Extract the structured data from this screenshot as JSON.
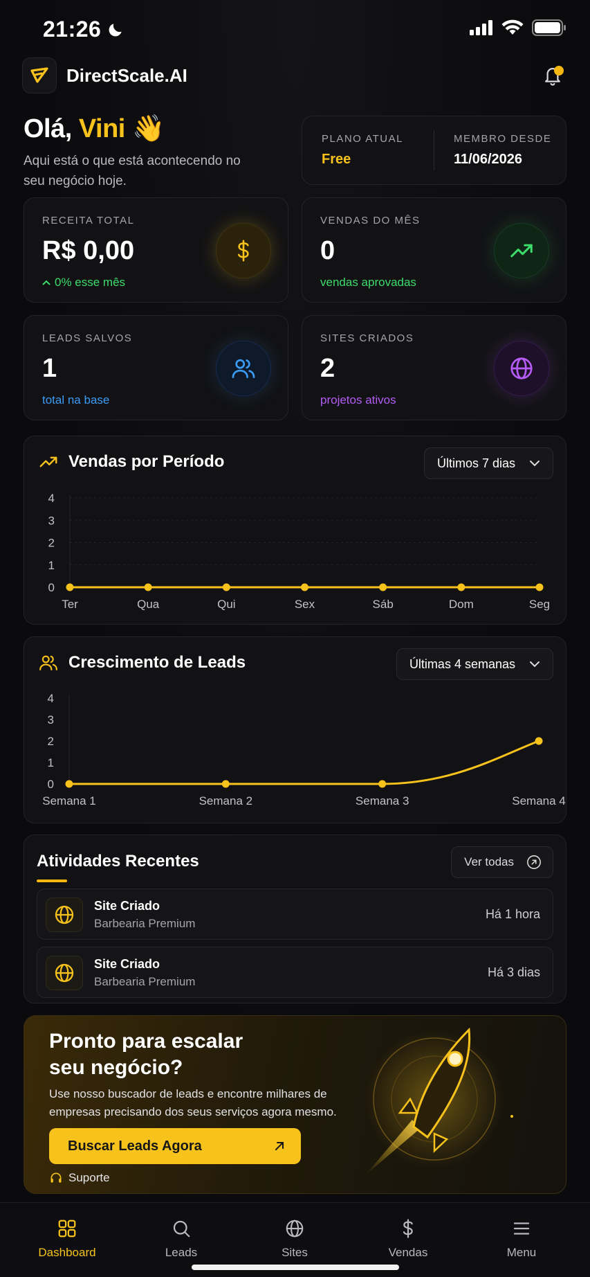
{
  "status_bar": {
    "time": "21:26"
  },
  "header": {
    "brand": "DirectScale.AI"
  },
  "greeting": {
    "hello": "Olá,",
    "name": "Vini",
    "emoji": "👋",
    "subtitle": "Aqui está o que está acontecendo no seu negócio hoje."
  },
  "plan": {
    "current_label": "PLANO ATUAL",
    "current_value": "Free",
    "member_label": "MEMBRO DESDE",
    "member_value": "11/06/2026"
  },
  "stats": [
    {
      "label": "RECEITA TOTAL",
      "value": "R$ 0,00",
      "sub": "0% esse mês",
      "icon": "dollar-icon",
      "accent": "#f7c21b"
    },
    {
      "label": "VENDAS DO MÊS",
      "value": "0",
      "sub": "vendas aprovadas",
      "icon": "trending-up-icon",
      "accent": "#3ddc6b"
    },
    {
      "label": "LEADS SALVOS",
      "value": "1",
      "sub": "total na base",
      "icon": "users-icon",
      "accent": "#3b9cf5"
    },
    {
      "label": "SITES CRIADOS",
      "value": "2",
      "sub": "projetos ativos",
      "icon": "globe-icon",
      "accent": "#b45cf5"
    }
  ],
  "sales_chart": {
    "title": "Vendas por Período",
    "filter": "Últimos 7 dias"
  },
  "leads_chart": {
    "title": "Crescimento de Leads",
    "filter": "Últimas 4 semanas"
  },
  "chart_data": [
    {
      "type": "line",
      "title": "Vendas por Período",
      "categories": [
        "Ter",
        "Qua",
        "Qui",
        "Sex",
        "Sáb",
        "Dom",
        "Seg"
      ],
      "values": [
        0,
        0,
        0,
        0,
        0,
        0,
        0
      ],
      "yticks": [
        0,
        1,
        2,
        3,
        4
      ],
      "ylim": [
        0,
        4
      ],
      "grid": true,
      "color": "#f7c21b"
    },
    {
      "type": "line",
      "title": "Crescimento de Leads",
      "categories": [
        "Semana 1",
        "Semana 2",
        "Semana 3",
        "Semana 4"
      ],
      "values": [
        0,
        0,
        0,
        2
      ],
      "yticks": [
        0,
        1,
        2,
        3,
        4
      ],
      "ylim": [
        0,
        4
      ],
      "grid": false,
      "color": "#f7c21b"
    }
  ],
  "activities": {
    "title": "Atividades Recentes",
    "view_all": "Ver todas",
    "items": [
      {
        "title": "Site Criado",
        "subtitle": "Barbearia Premium",
        "time": "Há 1 hora"
      },
      {
        "title": "Site Criado",
        "subtitle": "Barbearia Premium",
        "time": "Há 3 dias"
      }
    ]
  },
  "promo": {
    "title": "Pronto para escalar seu negócio?",
    "text": "Use nosso buscador de leads e encontre milhares de empresas precisando dos seus serviços agora mesmo.",
    "cta": "Buscar Leads Agora",
    "support": "Suporte"
  },
  "nav": [
    {
      "label": "Dashboard",
      "icon": "grid-icon",
      "active": true
    },
    {
      "label": "Leads",
      "icon": "search-icon",
      "active": false
    },
    {
      "label": "Sites",
      "icon": "globe-icon",
      "active": false
    },
    {
      "label": "Vendas",
      "icon": "dollar-icon",
      "active": false
    },
    {
      "label": "Menu",
      "icon": "menu-icon",
      "active": false
    }
  ],
  "colors": {
    "accent": "#f7c21b",
    "background": "#0b0b0d",
    "card": "#121215"
  }
}
